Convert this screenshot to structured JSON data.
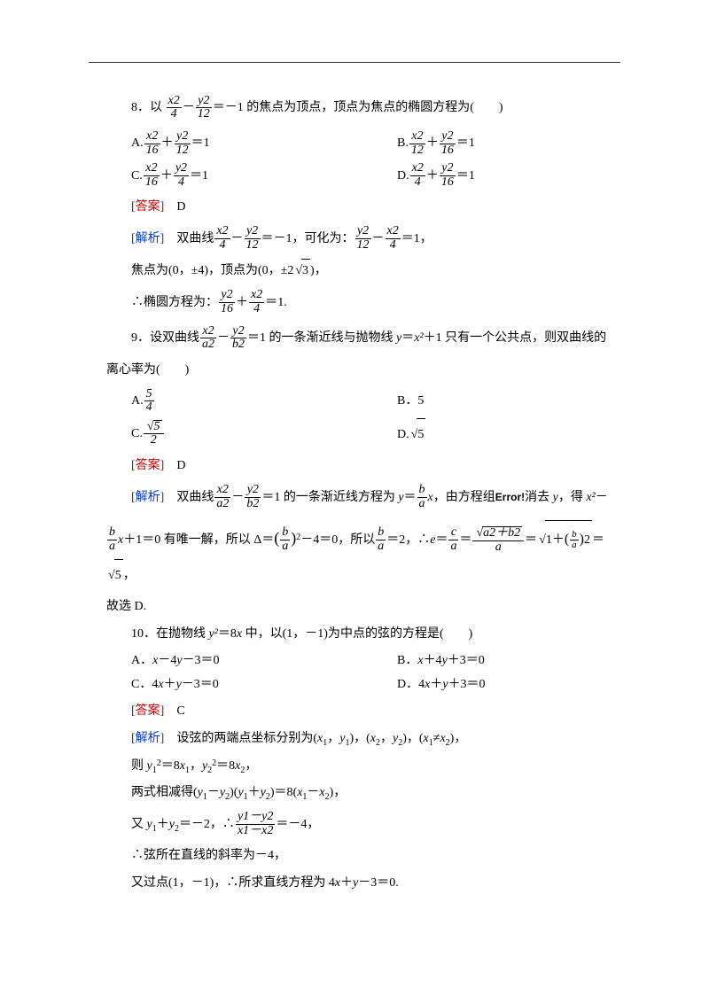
{
  "q8": {
    "num": "8．以",
    "tail": "＝－1 的焦点为顶点，顶点为焦点的椭圆方程为(　　)",
    "optA_pre": "A.",
    "optA_post": "＝1",
    "optB_pre": "B.",
    "optB_post": "＝1",
    "optC_pre": "C.",
    "optC_post": "＝1",
    "optD_pre": "D.",
    "optD_post": "＝1",
    "ans_label": "[答案]",
    "ans": "　D",
    "ana_label": "[解析]",
    "ana1a": "　双曲线",
    "ana1b": "＝－1，可化为：",
    "ana1c": "＝1，",
    "ana2a": "焦点为(0，±4)，顶点为(0，±2",
    "ana2b": ")，",
    "ana3a": "∴椭圆方程为：",
    "ana3b": "＝1."
  },
  "q9": {
    "num": "9．设双曲线",
    "mid": "＝1 的一条渐近线与抛物线 ",
    "mid2": "＝",
    "mid3": "＋1 只有一个公共点，则双曲线的",
    "line2": "离心率为(　　)",
    "optA_pre": "A.",
    "optB": "B．5",
    "optC_pre": "C.",
    "optD_pre": "D.",
    "ans_label": "[答案]",
    "ans": "　D",
    "ana_label": "[解析]",
    "ana1a": "　双曲线",
    "ana1b": "＝1 的一条渐近线方程为 ",
    "ana1c": "＝",
    "ana1d": "，由方程组",
    "ana1e": "消去 ",
    "ana1f": "，得 ",
    "ana1g": "－",
    "ana2a": "＋1＝0 有唯一解，所以 Δ＝",
    "ana2b": "－4＝0，所以",
    "ana2c": "＝2，∴",
    "ana2d": "＝",
    "ana2e": "＝",
    "ana2f": "＝",
    "ana2g": "＝",
    "ana2h": "，",
    "ana3": "故选 D."
  },
  "q10": {
    "stem": "10．在抛物线 ",
    "stem2": "＝8",
    "stem3": " 中，以(1，－1)为中点的弦的方程是(　　)",
    "optA": "A．",
    "optA2": "－4",
    "optA3": "－3＝0",
    "optB": "B．",
    "optB2": "＋4",
    "optB3": "＋3＝0",
    "optC": "C．4",
    "optC2": "＋",
    "optC3": "－3＝0",
    "optD": "D．4",
    "optD2": "＋",
    "optD3": "＋3＝0",
    "ans_label": "[答案]",
    "ans": "　C",
    "ana_label": "[解析]",
    "ana1": "　设弦的两端点坐标分别为(",
    "ana1b": "，",
    "ana1c": ")，(",
    "ana1d": "，",
    "ana1e": ")，(",
    "ana1f": "≠",
    "ana1g": ")，",
    "ana2a": "则 ",
    "ana2b": "＝8",
    "ana2c": "，",
    "ana2d": "＝8",
    "ana2e": "，",
    "ana3": "两式相减得(",
    "ana3b": "－",
    "ana3c": ")(",
    "ana3d": "＋",
    "ana3e": ")＝8(",
    "ana3f": "－",
    "ana3g": ")，",
    "ana4a": "又 ",
    "ana4b": "＋",
    "ana4c": "＝－2，∴",
    "ana4d": "＝－4，",
    "ana5": "∴弦所在直线的斜率为－4，",
    "ana6": "又过点(1，－1)，∴所求直线方程为 4",
    "ana6b": "＋",
    "ana6c": "－3＝0."
  },
  "frac": {
    "x2": "x2",
    "y2": "y2",
    "a2": "a2",
    "b2": "b2",
    "n4": "4",
    "n12": "12",
    "n16": "16",
    "n2": "2",
    "n5": "5",
    "b": "b",
    "a": "a",
    "c": "c",
    "a2b2": "a2＋b2",
    "y1y2": "y1－y2",
    "x1x2": "x1－x2"
  },
  "sym": {
    "x": "x",
    "y": "y",
    "x2": "x²",
    "y2": "y²",
    "x1": "x",
    "x2s": "x",
    "y1": "y",
    "y2s": "y",
    "s1": "1",
    "s2": "2",
    "sqrt3": "3",
    "sqrt5": "5",
    "err": "Error!",
    "e": "e"
  }
}
